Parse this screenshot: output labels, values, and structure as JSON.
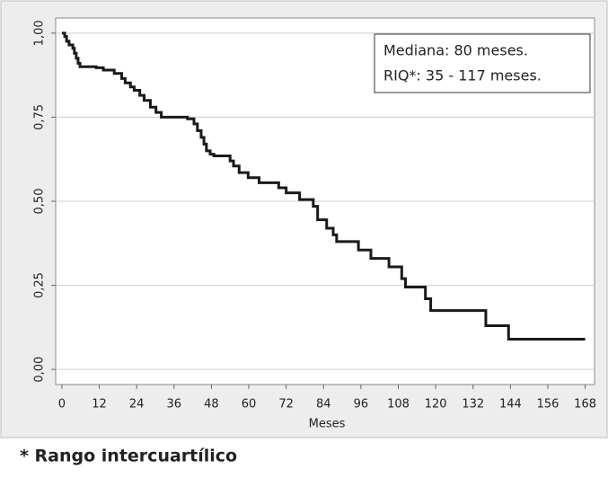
{
  "chart_data": {
    "type": "line",
    "step": "post",
    "xlabel": "Meses",
    "annotations": [
      "Mediana:  80 meses.",
      "RIQ*: 35 - 117 meses."
    ],
    "footnote": "* Rango intercuartílico",
    "xlim": [
      -2,
      171
    ],
    "xticks": [
      0,
      12,
      24,
      36,
      48,
      60,
      72,
      84,
      96,
      108,
      120,
      132,
      144,
      156,
      168
    ],
    "ylim": [
      -0.045,
      1.045
    ],
    "yticks": [
      {
        "value": 0,
        "label": "0,00"
      },
      {
        "value": 0.25,
        "label": "0,25"
      },
      {
        "value": 0.5,
        "label": "0,50"
      },
      {
        "value": 0.75,
        "label": "0,75"
      },
      {
        "value": 1,
        "label": "1,00"
      }
    ],
    "grid": true,
    "x": [
      0,
      0.9,
      1.5,
      2.3,
      3.5,
      4,
      4.6,
      5.2,
      5.8,
      11,
      13.3,
      16.8,
      19.2,
      20.3,
      22,
      23.2,
      25,
      26.4,
      28.4,
      30.2,
      31.9,
      40.3,
      42.4,
      43.5,
      44.7,
      45.6,
      46.4,
      47.6,
      48.8,
      54,
      55.1,
      56.9,
      59.8,
      63.3,
      69.6,
      72,
      76.3,
      80.7,
      82.1,
      85,
      87.1,
      88.2,
      95.2,
      99.2,
      105,
      109.1,
      110.3,
      116.7,
      118.4,
      136.1,
      143.4,
      168
    ],
    "series": [
      {
        "color": "#1a1a1a",
        "values": [
          1,
          0.99,
          0.976,
          0.965,
          0.955,
          0.94,
          0.925,
          0.91,
          0.9,
          0.897,
          0.89,
          0.88,
          0.865,
          0.852,
          0.84,
          0.83,
          0.815,
          0.8,
          0.78,
          0.764,
          0.75,
          0.745,
          0.73,
          0.71,
          0.69,
          0.67,
          0.65,
          0.64,
          0.635,
          0.62,
          0.605,
          0.585,
          0.57,
          0.555,
          0.54,
          0.525,
          0.505,
          0.485,
          0.445,
          0.42,
          0.4,
          0.38,
          0.355,
          0.33,
          0.305,
          0.27,
          0.245,
          0.21,
          0.175,
          0.13,
          0.09,
          0.09
        ]
      }
    ]
  }
}
